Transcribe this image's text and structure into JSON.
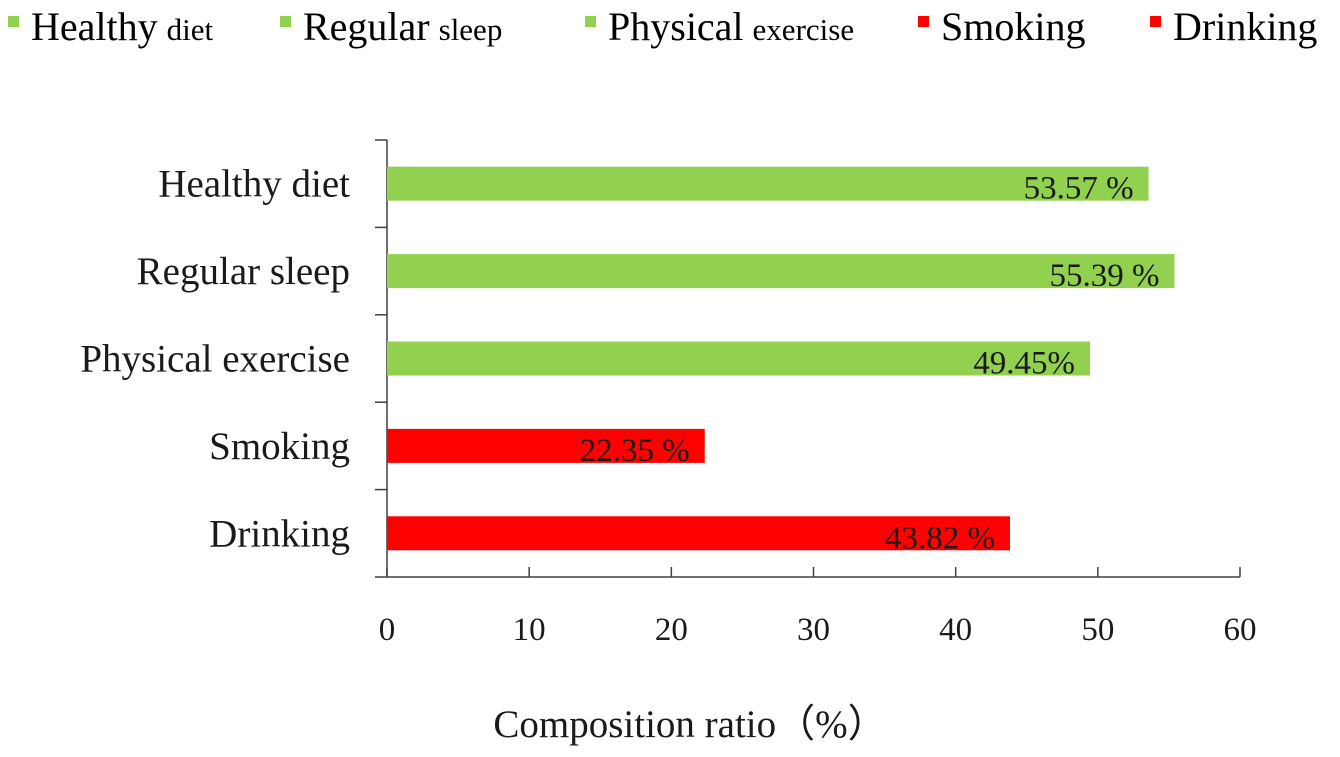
{
  "chart_data": {
    "type": "bar",
    "orientation": "horizontal",
    "categories": [
      "Healthy diet",
      "Regular sleep",
      "Physical exercise",
      "Smoking",
      "Drinking"
    ],
    "values": [
      53.57,
      55.39,
      49.45,
      22.35,
      43.82
    ],
    "data_labels": [
      "53.57 %",
      "55.39 %",
      "49.45%",
      "22.35 %",
      "43.82 %"
    ],
    "colors": [
      "#92d050",
      "#92d050",
      "#92d050",
      "#ff0000",
      "#ff0000"
    ],
    "xlabel": "Composition ratio（%）",
    "ylabel": "",
    "xlim": [
      0,
      60
    ],
    "xticks": [
      "0",
      "10",
      "20",
      "30",
      "40",
      "50",
      "60"
    ],
    "grid": false,
    "legend": {
      "placement": "top",
      "entries": [
        {
          "main": "Healthy",
          "small": "diet",
          "color": "#92d050"
        },
        {
          "main": "Regular",
          "small": "sleep",
          "color": "#92d050"
        },
        {
          "main": "Physical",
          "small": "exercise",
          "color": "#92d050"
        },
        {
          "main": "Smoking",
          "small": "",
          "color": "#ff0000"
        },
        {
          "main": "Drinking",
          "small": "",
          "color": "#ff0000"
        }
      ]
    }
  }
}
